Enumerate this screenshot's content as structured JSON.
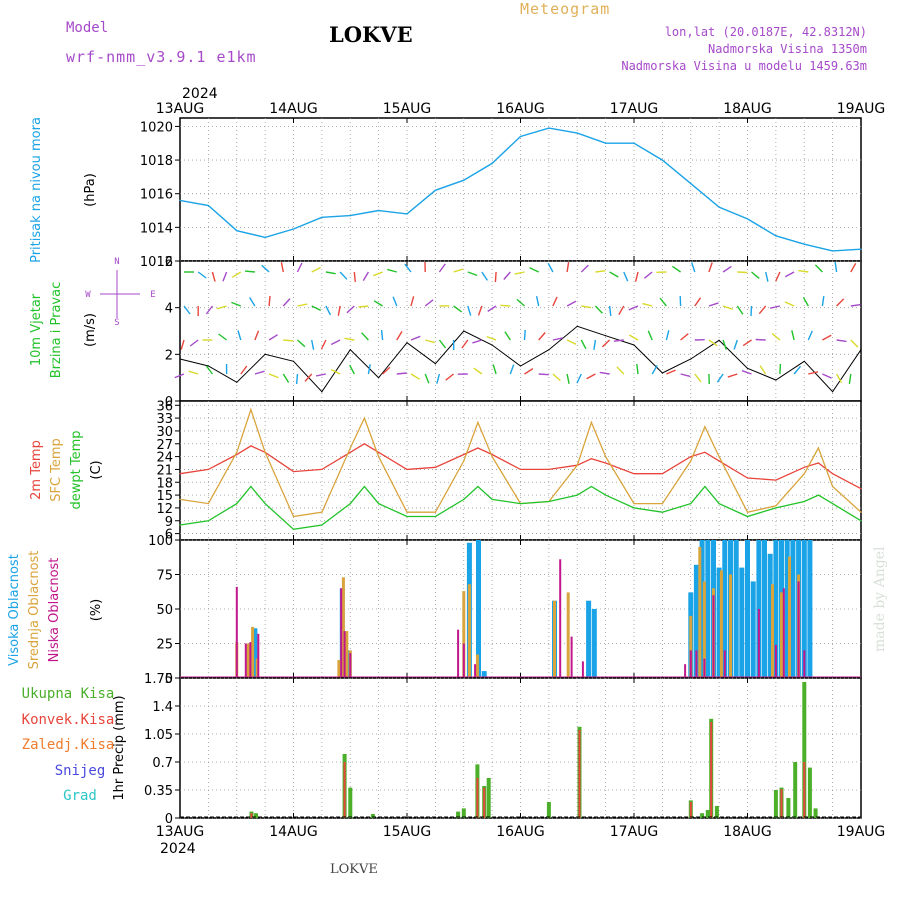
{
  "header": {
    "model_label": "Model",
    "model_value": "wrf-nmm_v3.9.1 e1km",
    "station": "LOKVE",
    "kind": "Meteogram",
    "lonlat": "lon,lat (20.0187E, 42.8312N)",
    "elevation": "Nadmorska Visina 1350m",
    "model_elevation": "Nadmorska Visina u modelu 1459.63m"
  },
  "footer": {
    "station": "LOKVE"
  },
  "watermark": "made by Angel",
  "colors": {
    "pressure": "#1aa3e6",
    "wind_speed": "#000000",
    "t2m": "#e8453c",
    "sfc": "#d9a43c",
    "dewpt": "#22c22a",
    "cloud_high": "#1aa3e6",
    "cloud_mid": "#d9a43c",
    "cloud_low": "#c0178c",
    "precip_total": "#4caf2a",
    "precip_conv": "#e8453c",
    "precip_frz": "#f07b2c",
    "snow": "#4a4adf",
    "hail": "#2cc6c6"
  },
  "chart_data": [
    {
      "type": "line",
      "panel": "pressure",
      "ylabel_name": "Pritisak na nivou mora",
      "ylabel_unit": "(hPa)",
      "x_year": "2024",
      "x_ticks": [
        "13AUG",
        "14AUG",
        "15AUG",
        "16AUG",
        "17AUG",
        "18AUG",
        "19AUG"
      ],
      "ylim": [
        1012,
        1020.5
      ],
      "y_ticks": [
        "1012",
        "1014",
        "1016",
        "1018",
        "1020"
      ],
      "grid": true,
      "series": [
        {
          "name": "",
          "x": [
            0,
            0.25,
            0.5,
            0.75,
            1.0,
            1.25,
            1.5,
            1.75,
            2.0,
            2.25,
            2.5,
            2.75,
            3.0,
            3.25,
            3.5,
            3.75,
            4.0,
            4.25,
            4.5,
            4.75,
            5.0,
            5.25,
            5.5,
            5.75,
            6.0
          ],
          "values": [
            1015.6,
            1015.3,
            1013.8,
            1013.4,
            1013.9,
            1014.6,
            1014.7,
            1015.0,
            1014.8,
            1016.2,
            1016.8,
            1017.8,
            1019.4,
            1019.9,
            1019.6,
            1019.0,
            1019.0,
            1018.0,
            1016.6,
            1015.2,
            1014.5,
            1013.5,
            1013.0,
            1012.6,
            1012.7
          ]
        }
      ]
    },
    {
      "type": "line",
      "panel": "wind",
      "ylabel_name": "10m Vjetar",
      "ylabel_name2": "Brzina i Pravac",
      "ylabel_unit": "(m/s)",
      "compass": {
        "n": "N",
        "s": "S",
        "w": "W",
        "e": "E"
      },
      "ylim": [
        0,
        6
      ],
      "y_ticks": [
        "0",
        "2",
        "4",
        "6"
      ],
      "grid": true,
      "series": [
        {
          "name": "",
          "x": [
            0,
            0.25,
            0.5,
            0.75,
            1.0,
            1.25,
            1.5,
            1.75,
            2.0,
            2.25,
            2.5,
            2.75,
            3.0,
            3.25,
            3.5,
            3.75,
            4.0,
            4.25,
            4.5,
            4.75,
            5.0,
            5.25,
            5.5,
            5.75,
            6.0
          ],
          "values": [
            1.8,
            1.5,
            0.8,
            2.0,
            1.7,
            0.4,
            2.2,
            1.0,
            2.5,
            1.6,
            3.0,
            2.4,
            1.5,
            2.2,
            3.2,
            2.8,
            2.4,
            1.2,
            1.8,
            2.6,
            1.4,
            0.9,
            1.7,
            0.4,
            2.2
          ]
        }
      ]
    },
    {
      "type": "line",
      "panel": "temperature",
      "ylabel_t2m": "2m Temp",
      "ylabel_sfc": "SFC Temp",
      "ylabel_dew": "dewpt Temp",
      "ylabel_unit": "(C)",
      "ylim": [
        4.5,
        37
      ],
      "y_ticks": [
        "6",
        "9",
        "12",
        "15",
        "18",
        "21",
        "24",
        "27",
        "30",
        "33",
        "36"
      ],
      "grid": true,
      "x": [
        0,
        0.25,
        0.5,
        0.625,
        0.75,
        1.0,
        1.25,
        1.5,
        1.625,
        1.75,
        2.0,
        2.25,
        2.5,
        2.625,
        2.75,
        3.0,
        3.25,
        3.5,
        3.625,
        3.75,
        4.0,
        4.25,
        4.5,
        4.625,
        4.75,
        5.0,
        5.25,
        5.5,
        5.625,
        5.75,
        6.0
      ],
      "series": [
        {
          "name": "",
          "key": "t2m",
          "values": [
            20,
            21,
            24.5,
            26.5,
            25,
            20.5,
            21,
            25,
            27,
            25,
            21,
            21.5,
            24.5,
            26,
            24.5,
            21,
            21,
            22,
            23.5,
            22.5,
            20,
            20,
            24,
            25,
            23,
            19,
            18.5,
            21.5,
            22.5,
            20,
            16.5
          ]
        },
        {
          "name": "",
          "key": "sfc",
          "values": [
            14,
            13,
            25,
            35,
            25,
            10,
            11,
            26,
            33,
            24,
            11,
            11,
            23,
            32,
            24,
            13,
            13.5,
            22,
            32,
            24,
            13,
            13,
            23,
            31,
            24,
            11,
            12.5,
            20,
            26,
            17,
            11
          ]
        },
        {
          "name": "",
          "key": "dew",
          "values": [
            8,
            9,
            13,
            17,
            13,
            7,
            8,
            13,
            17,
            13,
            10,
            10,
            14,
            17,
            14,
            13,
            13.5,
            15,
            17,
            15,
            12,
            11,
            13,
            17,
            13,
            10,
            12,
            13.5,
            15,
            13,
            9
          ]
        }
      ]
    },
    {
      "type": "bar",
      "panel": "clouds",
      "ylabel_high": "Visoka Oblacnost",
      "ylabel_mid": "Srednja Oblacnost",
      "ylabel_low": "Niska Oblacnost",
      "ylabel_unit": "(%)",
      "ylim": [
        0,
        100
      ],
      "y_ticks": [
        "0",
        "25",
        "50",
        "75",
        "100"
      ],
      "grid": true,
      "series": [
        {
          "name": "",
          "key": "low",
          "x": [
            0.5,
            0.58,
            0.62,
            0.69,
            1.42,
            1.45,
            1.5,
            2.45,
            2.5,
            2.6,
            3.35,
            3.45,
            3.55,
            4.45,
            4.5,
            4.55,
            4.62,
            4.7,
            4.8,
            5.1,
            5.25,
            5.32,
            5.45,
            5.5
          ],
          "values": [
            66,
            25,
            26,
            32,
            65,
            34,
            18,
            35,
            25,
            10,
            86,
            30,
            12,
            10,
            20,
            20,
            14,
            60,
            20,
            50,
            24,
            65,
            70,
            20
          ]
        },
        {
          "name": "",
          "key": "mid",
          "x": [
            0.5,
            0.6,
            0.64,
            0.68,
            1.4,
            1.44,
            1.47,
            1.5,
            2.5,
            2.55,
            2.62,
            3.3,
            3.42,
            4.5,
            4.58,
            4.62,
            4.7,
            4.77,
            4.85,
            5.22,
            5.3,
            5.37,
            5.45
          ],
          "values": [
            26,
            25,
            37,
            14,
            13,
            73,
            34,
            20,
            63,
            68,
            17,
            56,
            62,
            45,
            95,
            70,
            65,
            78,
            75,
            68,
            62,
            88,
            75
          ]
        },
        {
          "name": "",
          "key": "high",
          "x": [
            0.66,
            1.43,
            1.49,
            2.55,
            2.63,
            2.68,
            3.3,
            3.6,
            3.65,
            4.5,
            4.55,
            4.6,
            4.65,
            4.7,
            4.75,
            4.8,
            4.85,
            4.9,
            4.95,
            5.0,
            5.05,
            5.1,
            5.15,
            5.2,
            5.25,
            5.3,
            5.35,
            5.4,
            5.45,
            5.5,
            5.55
          ],
          "values": [
            36,
            65,
            20,
            98,
            100,
            5,
            56,
            56,
            50,
            62,
            82,
            100,
            100,
            100,
            80,
            100,
            100,
            100,
            80,
            100,
            70,
            100,
            100,
            90,
            100,
            100,
            100,
            100,
            100,
            100,
            100
          ]
        }
      ]
    },
    {
      "type": "bar",
      "panel": "precipitation",
      "legend": [
        "Ukupna Kisa",
        "Konvek.Kisa",
        "Zaledj.Kisa",
        "Snijeg",
        "Grad"
      ],
      "ylabel_unit": "1hr Precip (mm)",
      "ylim": [
        0,
        1.75
      ],
      "y_ticks": [
        "0",
        "0.35",
        "0.7",
        "1.05",
        "1.4",
        "1.75"
      ],
      "grid": true,
      "x_ticks_bottom": [
        "13AUG",
        "14AUG",
        "15AUG",
        "16AUG",
        "17AUG",
        "18AUG",
        "19AUG"
      ],
      "x_year_bottom": "2024",
      "series": [
        {
          "name": "Ukupna Kisa",
          "key": "total",
          "x": [
            0.63,
            0.67,
            1.45,
            1.5,
            1.7,
            2.45,
            2.5,
            2.62,
            2.68,
            2.72,
            3.25,
            3.52,
            4.5,
            4.6,
            4.65,
            4.68,
            4.73,
            5.25,
            5.3,
            5.36,
            5.42,
            5.5,
            5.55,
            5.6
          ],
          "values": [
            0.08,
            0.06,
            0.8,
            0.38,
            0.05,
            0.08,
            0.12,
            0.67,
            0.4,
            0.5,
            0.2,
            1.14,
            0.22,
            0.06,
            0.1,
            1.24,
            0.15,
            0.35,
            0.38,
            0.25,
            0.7,
            1.7,
            0.63,
            0.12
          ]
        },
        {
          "name": "Konvek.Kisa",
          "key": "conv",
          "x": [
            0.63,
            1.45,
            2.62,
            2.68,
            3.52,
            4.5,
            4.68,
            5.3,
            5.5
          ],
          "values": [
            0.06,
            0.7,
            0.5,
            0.38,
            1.1,
            0.2,
            1.2,
            0.36,
            0.7
          ]
        }
      ]
    }
  ]
}
